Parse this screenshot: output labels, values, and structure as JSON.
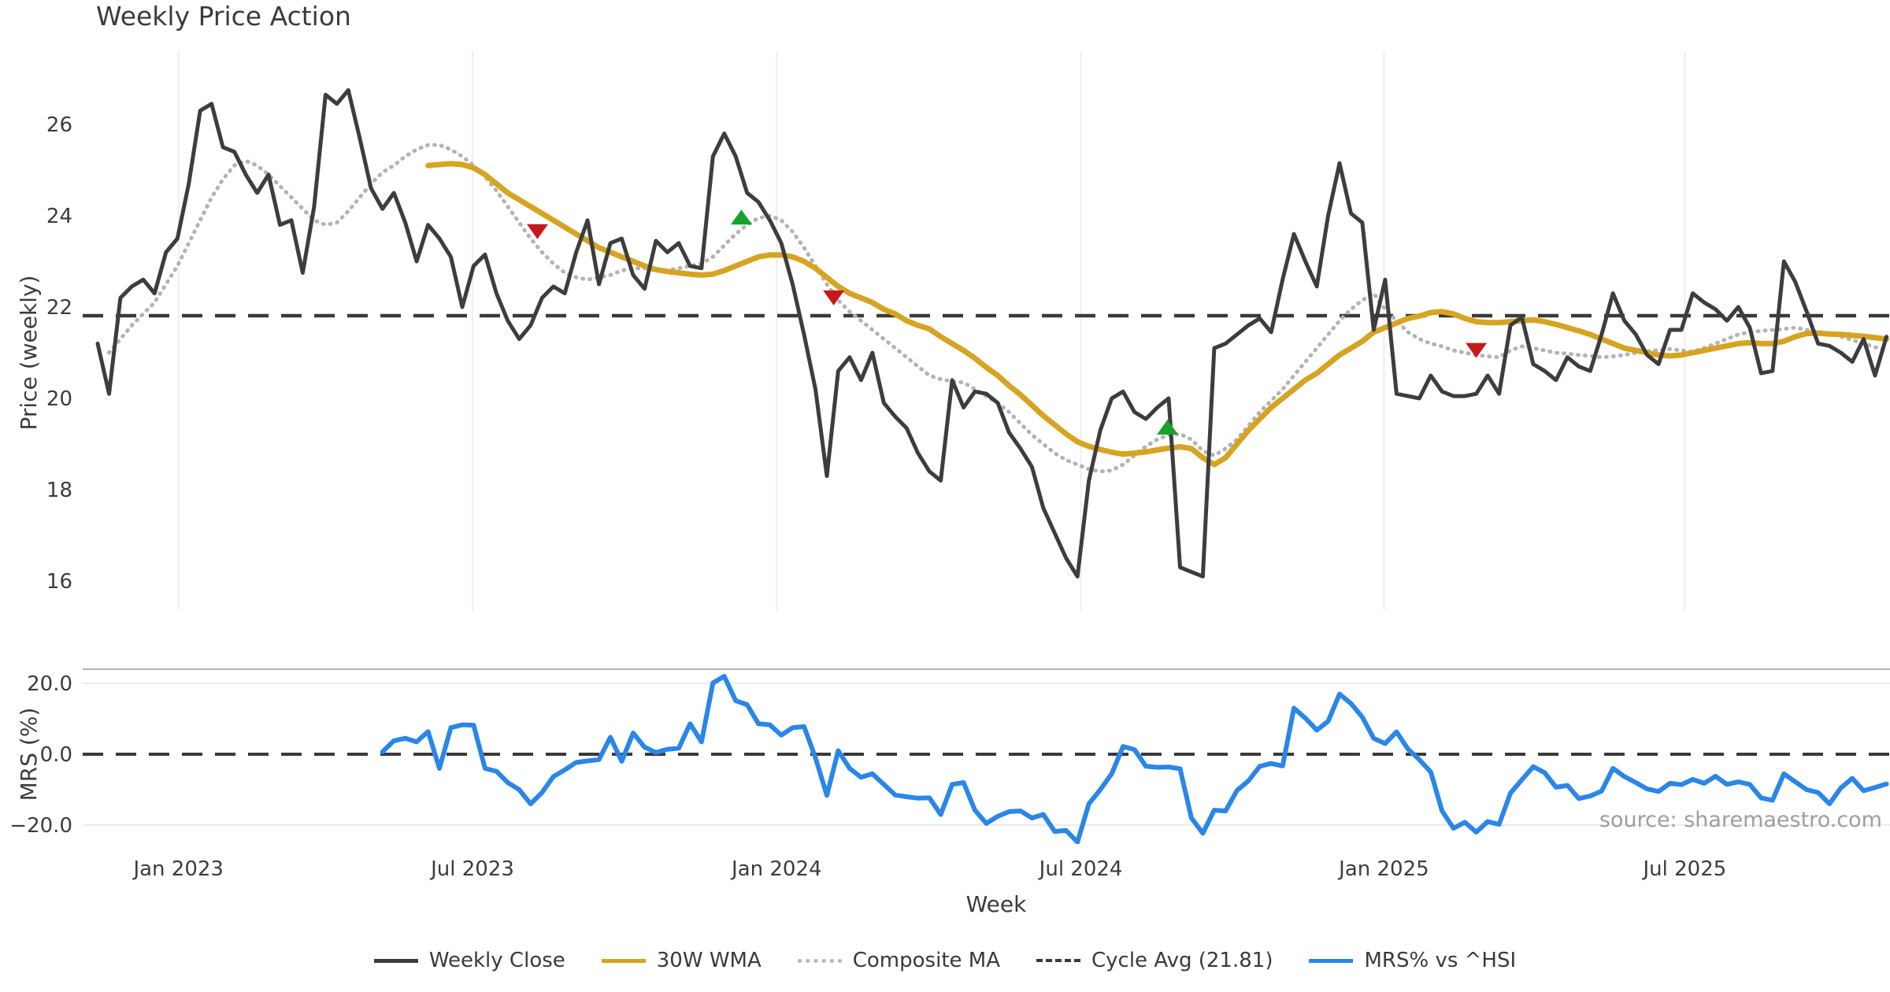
{
  "title": "Weekly Price Action",
  "source_note": "source: sharemaestro.com",
  "xlabel": "Week",
  "colors": {
    "text": "#3c3c3c",
    "weekly_close": "#3d3d3d",
    "wma_30w": "#d7a422",
    "composite_ma": "#b4b4b4",
    "cycle_avg": "#3a3a3a",
    "mrs": "#2a86e8",
    "buy_marker": "#18a12d",
    "sell_marker": "#c41a1f",
    "vgrid": "#edeef2",
    "hgrid": "#ebebeb",
    "spine": "#b0b0b0",
    "source": "#9e9e9e"
  },
  "legend": {
    "items": [
      {
        "label": "Weekly Close",
        "style": "solid",
        "color": "#3d3d3d"
      },
      {
        "label": "30W WMA",
        "style": "solid",
        "color": "#d7a422"
      },
      {
        "label": "Composite MA",
        "style": "dotted",
        "color": "#b4b4b4"
      },
      {
        "label": "Cycle Avg (21.81)",
        "style": "dashed",
        "color": "#3a3a3a"
      },
      {
        "label": "MRS% vs ^HSI",
        "style": "solid",
        "color": "#2a86e8"
      }
    ]
  },
  "chart_data": {
    "type": "line",
    "title": "Weekly Price Action",
    "xlabel": "Week",
    "x_unit": "week_index (weekly data, ~Nov 2022 to ~Oct 2025)",
    "grid": "light vertical gridlines at half-year ticks (top panel only)",
    "legend_position": "bottom center",
    "xticks": [
      {
        "week": 7.1,
        "label": "Jan 2023"
      },
      {
        "week": 32.9,
        "label": "Jul 2023"
      },
      {
        "week": 59.6,
        "label": "Jan 2024"
      },
      {
        "week": 86.3,
        "label": "Jul 2024"
      },
      {
        "week": 112.9,
        "label": "Jan 2025"
      },
      {
        "week": 139.3,
        "label": "Jul 2025"
      }
    ],
    "panels": [
      {
        "name": "price",
        "ylabel": "Price (weekly)",
        "ylim": [
          15.35,
          27.6
        ],
        "yticks": [
          {
            "label": "26",
            "value": 26
          },
          {
            "label": "24",
            "value": 24
          },
          {
            "label": "22",
            "value": 22
          },
          {
            "label": "20",
            "value": 20
          },
          {
            "label": "18",
            "value": 18
          },
          {
            "label": "16",
            "value": 16
          }
        ],
        "cycle_avg": 21.81,
        "series": [
          {
            "name": "Weekly Close",
            "style": "solid",
            "color": "#3d3d3d",
            "start_week": 0,
            "values": [
              21.2,
              20.1,
              22.2,
              22.45,
              22.6,
              22.3,
              23.2,
              23.5,
              24.7,
              26.3,
              26.45,
              25.5,
              25.4,
              24.9,
              24.5,
              24.9,
              23.8,
              23.9,
              22.75,
              24.2,
              26.65,
              26.45,
              26.75,
              25.7,
              24.6,
              24.15,
              24.5,
              23.85,
              23.0,
              23.8,
              23.5,
              23.1,
              22.0,
              22.9,
              23.15,
              22.3,
              21.7,
              21.3,
              21.6,
              22.2,
              22.45,
              22.3,
              23.2,
              23.9,
              22.5,
              23.4,
              23.5,
              22.7,
              22.4,
              23.45,
              23.2,
              23.4,
              22.9,
              22.85,
              25.3,
              25.8,
              25.3,
              24.5,
              24.3,
              23.9,
              23.4,
              22.5,
              21.4,
              20.2,
              18.3,
              20.6,
              20.9,
              20.4,
              21.0,
              19.9,
              19.6,
              19.35,
              18.8,
              18.4,
              18.2,
              20.4,
              19.8,
              20.15,
              20.1,
              19.9,
              19.25,
              18.9,
              18.5,
              17.6,
              17.05,
              16.5,
              16.1,
              18.2,
              19.3,
              20.0,
              20.15,
              19.7,
              19.55,
              19.8,
              20.0,
              16.3,
              16.2,
              16.1,
              21.1,
              21.2,
              21.4,
              21.6,
              21.75,
              21.45,
              22.6,
              23.6,
              23.0,
              22.45,
              24.0,
              25.15,
              24.05,
              23.85,
              21.5,
              22.6,
              20.1,
              20.05,
              20.0,
              20.5,
              20.15,
              20.05,
              20.05,
              20.1,
              20.5,
              20.1,
              21.6,
              21.78,
              20.75,
              20.6,
              20.4,
              20.9,
              20.7,
              20.6,
              21.4,
              22.3,
              21.7,
              21.4,
              20.95,
              20.75,
              21.5,
              21.5,
              22.3,
              22.1,
              21.95,
              21.7,
              22.0,
              21.55,
              20.55,
              20.6,
              23.0,
              22.55,
              21.9,
              21.2,
              21.15,
              21.0,
              20.8,
              21.3,
              20.5,
              21.35
            ]
          },
          {
            "name": "30W WMA",
            "style": "solid",
            "color": "#d7a422",
            "start_week": 29,
            "values": [
              25.1,
              25.12,
              25.14,
              25.12,
              25.05,
              24.9,
              24.7,
              24.5,
              24.35,
              24.2,
              24.05,
              23.9,
              23.75,
              23.6,
              23.45,
              23.3,
              23.2,
              23.1,
              23.0,
              22.9,
              22.82,
              22.78,
              22.75,
              22.72,
              22.7,
              22.72,
              22.8,
              22.9,
              23.0,
              23.1,
              23.14,
              23.14,
              23.1,
              23.0,
              22.85,
              22.65,
              22.45,
              22.3,
              22.2,
              22.1,
              21.95,
              21.85,
              21.7,
              21.6,
              21.52,
              21.35,
              21.2,
              21.05,
              20.88,
              20.68,
              20.5,
              20.28,
              20.08,
              19.85,
              19.62,
              19.42,
              19.22,
              19.05,
              18.95,
              18.88,
              18.82,
              18.78,
              18.8,
              18.83,
              18.87,
              18.91,
              18.94,
              18.9,
              18.7,
              18.55,
              18.7,
              19.0,
              19.3,
              19.55,
              19.8,
              20.0,
              20.2,
              20.4,
              20.55,
              20.75,
              20.95,
              21.1,
              21.25,
              21.45,
              21.55,
              21.65,
              21.75,
              21.8,
              21.88,
              21.9,
              21.85,
              21.75,
              21.68,
              21.66,
              21.66,
              21.68,
              21.7,
              21.72,
              21.68,
              21.62,
              21.55,
              21.48,
              21.4,
              21.3,
              21.2,
              21.1,
              21.05,
              21.0,
              20.95,
              20.93,
              20.95,
              21.0,
              21.05,
              21.1,
              21.15,
              21.2,
              21.22,
              21.2,
              21.2,
              21.25,
              21.35,
              21.42,
              21.43,
              21.41,
              21.4,
              21.38,
              21.36,
              21.33,
              21.3
            ]
          },
          {
            "name": "Composite MA",
            "style": "dotted",
            "color": "#b4b4b4",
            "start_week": 1,
            "values": [
              21.0,
              21.3,
              21.6,
              21.85,
              22.1,
              22.5,
              22.9,
              23.4,
              23.9,
              24.4,
              24.8,
              25.1,
              25.2,
              25.1,
              24.9,
              24.65,
              24.4,
              24.15,
              23.9,
              23.8,
              23.85,
              24.1,
              24.4,
              24.7,
              24.95,
              25.1,
              25.3,
              25.45,
              25.55,
              25.55,
              25.45,
              25.3,
              25.1,
              24.85,
              24.55,
              24.2,
              23.85,
              23.5,
              23.2,
              22.95,
              22.75,
              22.65,
              22.6,
              22.65,
              22.7,
              22.8,
              22.85,
              22.85,
              22.8,
              22.8,
              22.85,
              22.9,
              22.95,
              23.1,
              23.35,
              23.6,
              23.8,
              23.95,
              24.0,
              23.9,
              23.65,
              23.3,
              22.9,
              22.5,
              22.15,
              21.9,
              21.7,
              21.5,
              21.3,
              21.1,
              20.9,
              20.7,
              20.5,
              20.42,
              20.37,
              20.35,
              20.2,
              20.05,
              19.9,
              19.7,
              19.45,
              19.2,
              19.0,
              18.8,
              18.65,
              18.55,
              18.45,
              18.4,
              18.42,
              18.55,
              18.75,
              18.95,
              19.1,
              19.2,
              19.22,
              19.1,
              18.85,
              18.75,
              18.9,
              19.1,
              19.4,
              19.7,
              19.95,
              20.2,
              20.5,
              20.8,
              21.1,
              21.4,
              21.7,
              21.95,
              22.15,
              22.3,
              21.95,
              21.7,
              21.45,
              21.3,
              21.2,
              21.14,
              21.05,
              21.0,
              20.95,
              20.92,
              20.9,
              21.05,
              21.14,
              21.1,
              21.05,
              21.0,
              20.98,
              20.95,
              20.93,
              20.9,
              20.92,
              20.95,
              21.0,
              21.03,
              21.06,
              21.08,
              21.05,
              21.02,
              21.1,
              21.2,
              21.3,
              21.4,
              21.45,
              21.48,
              21.5,
              21.52,
              21.55,
              21.5,
              21.45,
              21.43,
              21.35,
              21.28,
              21.2,
              21.12,
              21.05
            ]
          },
          {
            "name": "Cycle Avg (21.81)",
            "style": "dashed",
            "color": "#3a3a3a",
            "value": 21.81
          }
        ],
        "markers": {
          "sell": {
            "shape": "triangle-down",
            "color": "#c41a1f",
            "points": [
              {
                "week": 38.6,
                "price": 23.65
              },
              {
                "week": 64.6,
                "price": 22.2
              },
              {
                "week": 121.0,
                "price": 21.05
              }
            ]
          },
          "buy": {
            "shape": "triangle-up",
            "color": "#18a12d",
            "points": [
              {
                "week": 56.5,
                "price": 23.97
              },
              {
                "week": 93.9,
                "price": 19.37
              }
            ]
          }
        }
      },
      {
        "name": "mrs",
        "ylabel": "MRS (%)",
        "ylim": [
          -25,
          24.5
        ],
        "yticks": [
          {
            "label": "20.0",
            "value": 20
          },
          {
            "label": "0.0",
            "value": 0
          },
          {
            "label": "−20.0",
            "value": -20
          }
        ],
        "zero_line": "dashed",
        "series": [
          {
            "name": "MRS% vs ^HSI",
            "style": "solid",
            "color": "#2a86e8",
            "start_week": 25,
            "values": [
              0.7,
              3.8,
              4.5,
              3.5,
              6.4,
              -4.0,
              7.5,
              8.3,
              8.2,
              -4.0,
              -4.8,
              -8.0,
              -10.0,
              -14.0,
              -10.8,
              -6.3,
              -4.4,
              -2.3,
              -1.9,
              -1.5,
              4.8,
              -2.0,
              6.0,
              2.0,
              0.5,
              1.4,
              1.7,
              8.6,
              3.5,
              20.1,
              22.0,
              15.1,
              14.0,
              8.6,
              8.3,
              5.4,
              7.5,
              7.8,
              -1.0,
              -11.6,
              1.0,
              -4.0,
              -6.5,
              -5.5,
              -8.5,
              -11.5,
              -12.0,
              -12.4,
              -12.3,
              -17.0,
              -8.5,
              -8.0,
              -15.8,
              -19.5,
              -17.5,
              -16.2,
              -16.0,
              -18.0,
              -17.0,
              -21.8,
              -21.5,
              -24.8,
              -14.0,
              -10.0,
              -5.5,
              2.2,
              1.3,
              -3.4,
              -3.7,
              -3.6,
              -4.1,
              -18.0,
              -22.3,
              -15.8,
              -16.0,
              -10.2,
              -7.5,
              -3.4,
              -2.6,
              -3.3,
              13.0,
              10.2,
              6.8,
              9.3,
              17.0,
              14.3,
              10.5,
              4.5,
              3.0,
              6.3,
              1.5,
              -1.5,
              -5.0,
              -16.0,
              -20.9,
              -19.2,
              -22.0,
              -19.0,
              -19.8,
              -11.0,
              -7.2,
              -3.5,
              -5.2,
              -9.3,
              -8.8,
              -12.5,
              -11.8,
              -10.4,
              -4.0,
              -6.3,
              -8.0,
              -9.8,
              -10.5,
              -8.2,
              -8.6,
              -7.1,
              -8.2,
              -6.2,
              -8.5,
              -7.8,
              -8.5,
              -12.3,
              -13.0,
              -5.5,
              -7.8,
              -10.0,
              -10.8,
              -14.0,
              -9.5,
              -6.8,
              -10.3,
              -9.4,
              -8.4
            ]
          }
        ]
      }
    ]
  }
}
